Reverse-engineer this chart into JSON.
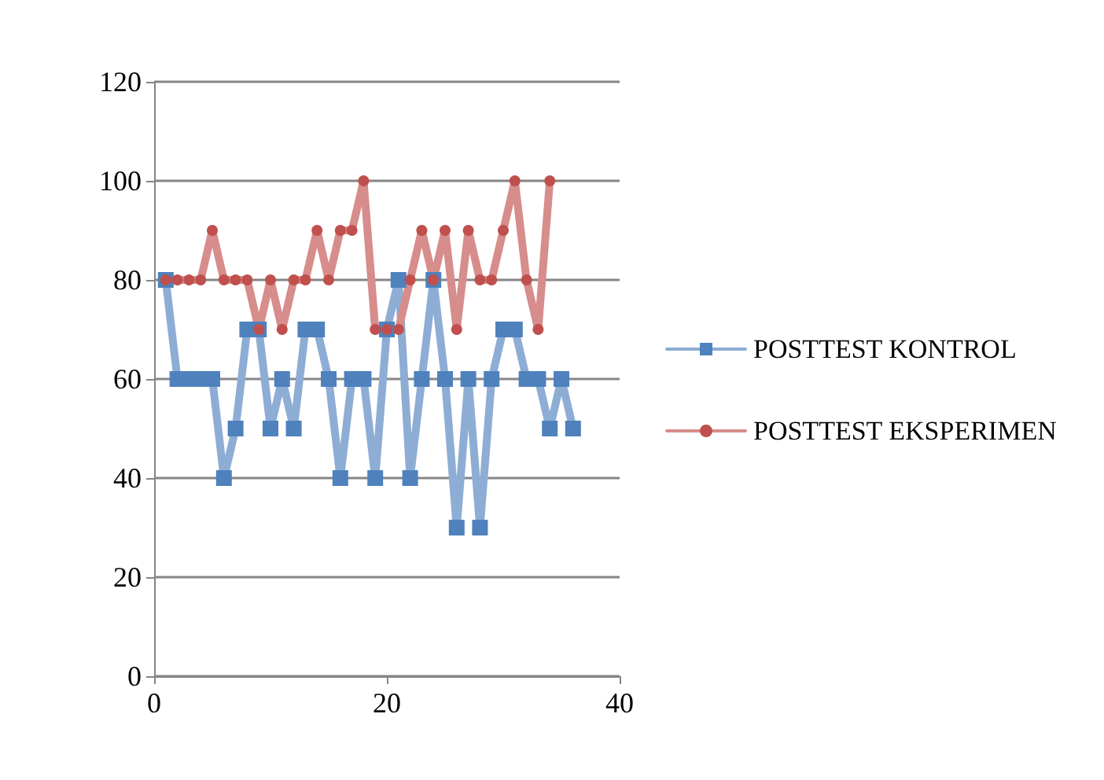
{
  "chart_data": {
    "type": "line",
    "xlim": [
      0,
      40
    ],
    "xticks": [
      0,
      20,
      40
    ],
    "ylim": [
      0,
      120
    ],
    "yticks": [
      0,
      20,
      40,
      60,
      80,
      100,
      120
    ],
    "grid": "y",
    "legend": "right",
    "series": [
      {
        "name": "POSTTEST KONTROL",
        "color": "#4f81bd",
        "marker": "square",
        "x": [
          1,
          2,
          3,
          4,
          5,
          6,
          7,
          8,
          9,
          10,
          11,
          12,
          13,
          14,
          15,
          16,
          17,
          18,
          19,
          20,
          21,
          22,
          23,
          24,
          25,
          26,
          27,
          28,
          29,
          30,
          31,
          32,
          33,
          34,
          35,
          36
        ],
        "values": [
          80,
          60,
          60,
          60,
          60,
          40,
          50,
          70,
          70,
          50,
          60,
          50,
          70,
          70,
          60,
          40,
          60,
          60,
          40,
          70,
          80,
          40,
          60,
          80,
          60,
          30,
          60,
          30,
          60,
          70,
          70,
          60,
          60,
          50,
          60,
          50
        ]
      },
      {
        "name": "POSTTEST EKSPERIMEN",
        "color": "#c0504d",
        "marker": "circle",
        "x": [
          1,
          2,
          3,
          4,
          5,
          6,
          7,
          8,
          9,
          10,
          11,
          12,
          13,
          14,
          15,
          16,
          17,
          18,
          19,
          20,
          21,
          22,
          23,
          24,
          25,
          26,
          27,
          28,
          29,
          30,
          31,
          32,
          33,
          34
        ],
        "values": [
          80,
          80,
          80,
          80,
          90,
          80,
          80,
          80,
          70,
          80,
          70,
          80,
          80,
          90,
          80,
          90,
          90,
          100,
          70,
          70,
          70,
          80,
          90,
          80,
          90,
          70,
          90,
          80,
          80,
          90,
          100,
          80,
          70,
          100
        ]
      }
    ]
  }
}
